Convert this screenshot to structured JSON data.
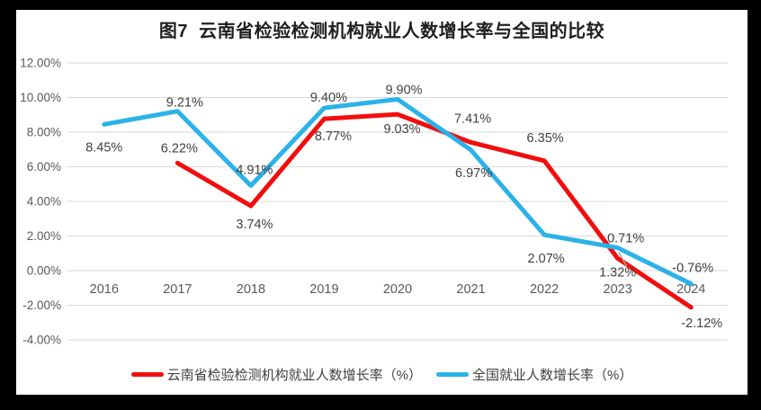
{
  "chart_data": {
    "type": "line",
    "title": "图7  云南省检验检测机构就业人数增长率与全国的比较",
    "categories": [
      "2016",
      "2017",
      "2018",
      "2019",
      "2020",
      "2021",
      "2022",
      "2023",
      "2024"
    ],
    "series": [
      {
        "name": "云南省检验检测机构就业人数增长率（%）",
        "slug": "yunnan-institutions-growth",
        "color": "#F20D0D",
        "values": [
          null,
          6.22,
          3.74,
          8.77,
          9.03,
          7.41,
          6.35,
          0.71,
          -2.12
        ],
        "data_labels": [
          "",
          "6.22%",
          "3.74%",
          "8.77%",
          "9.03%",
          "7.41%",
          "6.35%",
          "0.71%",
          "-2.12%"
        ],
        "label_offsets": [
          null,
          [
            2,
            -16
          ],
          [
            4,
            21
          ],
          [
            10,
            20
          ],
          [
            5,
            17
          ],
          [
            2,
            -26
          ],
          [
            1,
            -25
          ],
          [
            9,
            -22
          ],
          [
            12,
            18
          ]
        ]
      },
      {
        "name": "全国就业人数增长率（%）",
        "slug": "national-growth",
        "color": "#2BB2E8",
        "values": [
          8.45,
          9.21,
          4.91,
          9.4,
          9.9,
          6.97,
          2.07,
          1.32,
          -0.76
        ],
        "data_labels": [
          "8.45%",
          "9.21%",
          "4.91%",
          "9.40%",
          "9.90%",
          "6.97%",
          "2.07%",
          "1.32%",
          "-0.76%"
        ],
        "label_offsets": [
          [
            0,
            26
          ],
          [
            8,
            -9
          ],
          [
            4,
            -17
          ],
          [
            5,
            -11
          ],
          [
            7,
            -10
          ],
          [
            3,
            26
          ],
          [
            2,
            27
          ],
          [
            0,
            28
          ],
          [
            2,
            -17
          ]
        ],
        "leader_line_at": 7
      }
    ],
    "ylim": [
      -4,
      12
    ],
    "yticks": [
      {
        "value": 12,
        "label": "12.00%"
      },
      {
        "value": 10,
        "label": "10.00%"
      },
      {
        "value": 8,
        "label": "8.00%"
      },
      {
        "value": 6,
        "label": "6.00%"
      },
      {
        "value": 4,
        "label": "4.00%"
      },
      {
        "value": 2,
        "label": "2.00%"
      },
      {
        "value": 0,
        "label": "0.00%"
      },
      {
        "value": -2,
        "label": "-2.00%"
      },
      {
        "value": -4,
        "label": "-4.00%"
      }
    ],
    "grid": true,
    "legend_position": "bottom",
    "grid_color": "#D9D9D9",
    "axis_text_color": "#595959",
    "data_label_color": "#404040",
    "leader_line_color": "#A6A6A6",
    "frame_color": "#000000",
    "background_color": "#FFFFFF"
  }
}
